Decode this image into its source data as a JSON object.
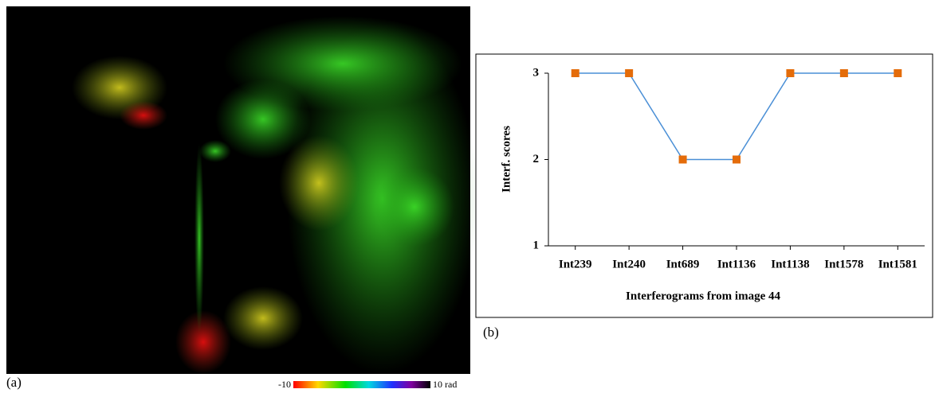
{
  "chart_data": {
    "type": "line",
    "categories": [
      "Int239",
      "Int240",
      "Int689",
      "Int1136",
      "Int1138",
      "Int1578",
      "Int1581"
    ],
    "series": [
      {
        "name": "Interf. scores",
        "color": "#4a8fd6",
        "marker_color": "#e46c0a",
        "values": [
          3,
          3,
          2,
          2,
          3,
          3,
          3
        ]
      }
    ],
    "ylim": [
      1,
      3
    ],
    "yticks": [
      1,
      2,
      3
    ],
    "ylabel": "Interf. scores",
    "xlabel": "Interferograms from image 44",
    "grid": false
  },
  "figure": {
    "panel_a_label": "(a)",
    "panel_b_label": "(b)",
    "colorbar": {
      "min_label": "-10",
      "max_label": "10 rad"
    }
  }
}
